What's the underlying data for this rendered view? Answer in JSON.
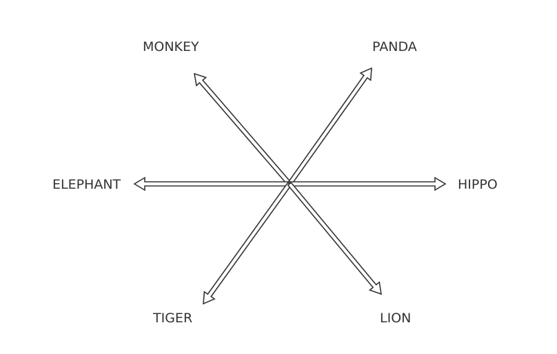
{
  "labels": {
    "monkey": "MONKEY",
    "panda": "PANDA",
    "elephant": "ELEPHANT",
    "hippo": "HIPPO",
    "tiger": "TIGER",
    "lion": "LION"
  },
  "style": {
    "stroke": "#333333",
    "fill": "#ffffff"
  }
}
